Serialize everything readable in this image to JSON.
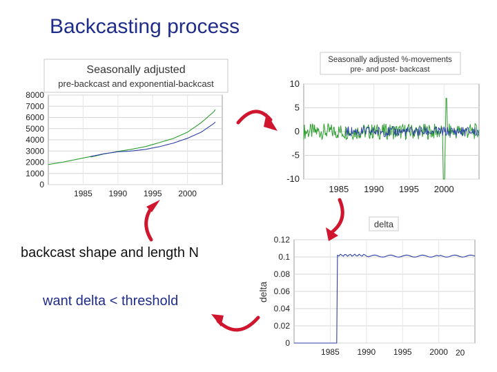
{
  "slide": {
    "title": "Backcasting process",
    "caption_shape": "backcast shape and length N",
    "caption_delta": "want delta < threshold",
    "page_number": "20",
    "colors": {
      "title": "#1f2d8a",
      "arrow": "#d0162f",
      "green": "#2a9d2a",
      "blue": "#2b3ea8"
    }
  },
  "chart_data": [
    {
      "type": "line",
      "title": "Seasonally adjusted",
      "subtitle": "pre-backcast and exponential-backcast",
      "xlabel": "",
      "ylabel": "",
      "xlim": [
        1980,
        2005
      ],
      "ylim": [
        0,
        8000
      ],
      "y_ticks": [
        0,
        1000,
        2000,
        3000,
        4000,
        5000,
        6000,
        7000,
        8000
      ],
      "x_ticks": [
        1985,
        1990,
        1995,
        2000
      ],
      "grid": true,
      "series": [
        {
          "name": "exponential-backcast",
          "color": "#2a9d2a",
          "x": [
            1980,
            1982,
            1984,
            1986,
            1988,
            1990,
            1992,
            1994,
            1996,
            1998,
            2000,
            2002,
            2004
          ],
          "y": [
            1800,
            2000,
            2250,
            2500,
            2800,
            3000,
            3150,
            3350,
            3700,
            4100,
            4700,
            5600,
            6700
          ]
        },
        {
          "name": "pre-backcast",
          "color": "#2b3ea8",
          "x": [
            1986,
            1988,
            1990,
            1992,
            1994,
            1996,
            1998,
            2000,
            2002,
            2004
          ],
          "y": [
            2500,
            2800,
            3000,
            3050,
            3150,
            3350,
            3650,
            4100,
            4700,
            5600
          ]
        }
      ]
    },
    {
      "type": "line",
      "title": "Seasonally adjusted %-movements",
      "subtitle": "pre- and post- backcast",
      "xlabel": "",
      "ylabel": "",
      "xlim": [
        1980,
        2005
      ],
      "ylim": [
        -10,
        10
      ],
      "y_ticks": [
        10,
        5,
        0,
        -5,
        -10
      ],
      "x_ticks": [
        1985,
        1990,
        1995,
        2000
      ],
      "grid": true,
      "series": [
        {
          "name": "post-backcast",
          "color": "#2a9d2a",
          "values_summary": "monthly %-movements around 0, typically within ±2, spikes to about +7 and -10 near 2000"
        },
        {
          "name": "pre-backcast",
          "color": "#2b3ea8",
          "values_summary": "monthly %-movements around 0 from 1986 onward"
        }
      ]
    },
    {
      "type": "line",
      "title": "delta",
      "xlabel": "",
      "ylabel": "delta",
      "xlim": [
        1980,
        2005
      ],
      "ylim": [
        0,
        0.12
      ],
      "y_ticks": [
        0.12,
        0.1,
        0.08,
        0.06,
        0.04,
        0.02,
        0
      ],
      "y_tick_labels": [
        "0.12",
        "0.1",
        "0.08",
        "0.06",
        "0.04",
        "0.02",
        "0"
      ],
      "x_ticks": [
        1985,
        1990,
        1995,
        2000
      ],
      "grid": true,
      "series": [
        {
          "name": "delta",
          "color": "#2b3ea8",
          "x": [
            1980,
            1985.9,
            1986,
            1990,
            1995,
            2000,
            2005
          ],
          "y": [
            0,
            0,
            0.102,
            0.101,
            0.101,
            0.101,
            0.101
          ]
        }
      ]
    }
  ]
}
